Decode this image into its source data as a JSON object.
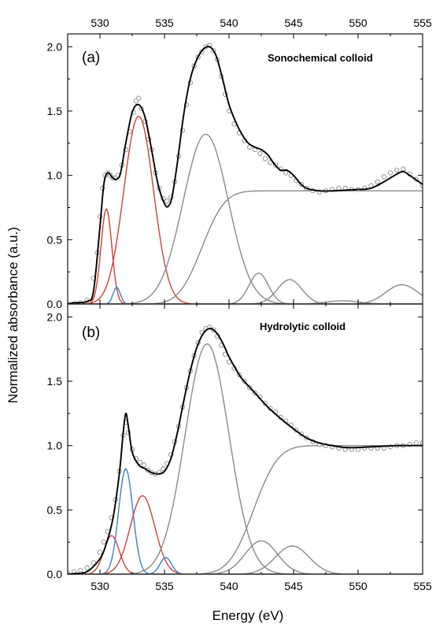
{
  "chart_data": [
    {
      "type": "line",
      "panel": "(a)",
      "annotation": "Sonochemical colloid",
      "xlabel": "Energy (eV)",
      "ylabel": "Normalized absorbance (a.u.)",
      "xlim": [
        527.5,
        555
      ],
      "ylim": [
        0,
        2.1
      ],
      "x_ticks": [
        530,
        535,
        540,
        545,
        550,
        555
      ],
      "x_tick_labels": [
        "530",
        "535",
        "540",
        "545",
        "550",
        "555"
      ],
      "y_ticks": [
        0.0,
        0.5,
        1.0,
        1.5,
        2.0
      ],
      "y_tick_labels": [
        "0.0",
        "0.5",
        "1.0",
        "1.5",
        "2.0"
      ],
      "grid": false,
      "colors": {
        "fit": "#000000",
        "gray": "#8a8a8a",
        "red": "#d0403a",
        "blue": "#3b82c4",
        "data": "#8c8c8c"
      },
      "components": [
        {
          "color": "red",
          "shape": "gauss",
          "center": 530.5,
          "amplitude": 0.74,
          "sigma": 0.42
        },
        {
          "color": "blue",
          "shape": "gauss",
          "center": 531.3,
          "amplitude": 0.13,
          "sigma": 0.28
        },
        {
          "color": "red",
          "shape": "gauss",
          "center": 533.0,
          "amplitude": 1.46,
          "sigma": 1.15
        },
        {
          "color": "gray",
          "shape": "gauss",
          "center": 538.2,
          "amplitude": 1.32,
          "sigma": 1.75
        },
        {
          "color": "gray",
          "shape": "step",
          "center": 537.9,
          "amplitude": 0.88,
          "width": 1.4
        },
        {
          "color": "gray",
          "shape": "gauss",
          "center": 542.3,
          "amplitude": 0.24,
          "sigma": 0.75
        },
        {
          "color": "gray",
          "shape": "gauss",
          "center": 544.7,
          "amplitude": 0.19,
          "sigma": 0.95
        },
        {
          "color": "gray",
          "shape": "gauss",
          "center": 548.8,
          "amplitude": 0.025,
          "sigma": 1.3
        },
        {
          "color": "gray",
          "shape": "gauss",
          "center": 553.4,
          "amplitude": 0.15,
          "sigma": 1.25
        }
      ],
      "fit_points": [
        [
          527.5,
          0.0
        ],
        [
          528.0,
          0.01
        ],
        [
          529.0,
          0.02
        ],
        [
          529.5,
          0.1
        ],
        [
          530.0,
          0.6
        ],
        [
          530.3,
          0.93
        ],
        [
          530.6,
          1.02
        ],
        [
          531.0,
          0.98
        ],
        [
          531.3,
          0.97
        ],
        [
          531.6,
          1.02
        ],
        [
          532.0,
          1.25
        ],
        [
          532.5,
          1.49
        ],
        [
          533.0,
          1.55
        ],
        [
          533.5,
          1.45
        ],
        [
          534.0,
          1.2
        ],
        [
          534.5,
          0.93
        ],
        [
          535.0,
          0.78
        ],
        [
          535.3,
          0.76
        ],
        [
          535.6,
          0.84
        ],
        [
          536.0,
          1.1
        ],
        [
          536.5,
          1.48
        ],
        [
          537.0,
          1.75
        ],
        [
          537.5,
          1.9
        ],
        [
          538.0,
          1.98
        ],
        [
          538.5,
          2.0
        ],
        [
          539.0,
          1.93
        ],
        [
          539.5,
          1.75
        ],
        [
          540.0,
          1.55
        ],
        [
          540.5,
          1.42
        ],
        [
          541.0,
          1.32
        ],
        [
          541.5,
          1.25
        ],
        [
          542.0,
          1.22
        ],
        [
          542.5,
          1.2
        ],
        [
          543.0,
          1.16
        ],
        [
          543.5,
          1.09
        ],
        [
          544.0,
          1.04
        ],
        [
          544.5,
          1.04
        ],
        [
          545.0,
          1.0
        ],
        [
          545.5,
          0.94
        ],
        [
          546.0,
          0.9
        ],
        [
          547.0,
          0.88
        ],
        [
          548.0,
          0.88
        ],
        [
          549.0,
          0.885
        ],
        [
          550.0,
          0.89
        ],
        [
          551.0,
          0.9
        ],
        [
          552.0,
          0.95
        ],
        [
          553.0,
          1.01
        ],
        [
          553.5,
          1.03
        ],
        [
          554.0,
          1.0
        ],
        [
          555.0,
          0.93
        ]
      ],
      "data_points": [
        [
          527.5,
          0.0
        ],
        [
          528.0,
          0.0
        ],
        [
          528.5,
          0.01
        ],
        [
          529.0,
          0.03
        ],
        [
          529.5,
          0.2
        ],
        [
          529.8,
          0.4
        ],
        [
          530.0,
          0.68
        ],
        [
          530.2,
          0.9
        ],
        [
          530.4,
          1.0
        ],
        [
          530.6,
          1.02
        ],
        [
          530.8,
          1.0
        ],
        [
          531.0,
          0.98
        ],
        [
          531.2,
          0.98
        ],
        [
          531.4,
          1.0
        ],
        [
          531.7,
          1.08
        ],
        [
          532.0,
          1.2
        ],
        [
          532.3,
          1.34
        ],
        [
          532.6,
          1.49
        ],
        [
          532.8,
          1.58
        ],
        [
          533.0,
          1.6
        ],
        [
          533.2,
          1.52
        ],
        [
          533.5,
          1.42
        ],
        [
          533.8,
          1.28
        ],
        [
          534.0,
          1.2
        ],
        [
          534.3,
          1.02
        ],
        [
          534.6,
          0.9
        ],
        [
          534.9,
          0.82
        ],
        [
          535.2,
          0.8
        ],
        [
          535.5,
          0.83
        ],
        [
          535.8,
          0.95
        ],
        [
          536.1,
          1.15
        ],
        [
          536.4,
          1.35
        ],
        [
          536.7,
          1.55
        ],
        [
          537.0,
          1.72
        ],
        [
          537.3,
          1.85
        ],
        [
          537.6,
          1.92
        ],
        [
          537.9,
          1.96
        ],
        [
          538.2,
          2.0
        ],
        [
          538.5,
          2.01
        ],
        [
          538.8,
          1.97
        ],
        [
          539.1,
          1.9
        ],
        [
          539.4,
          1.77
        ],
        [
          539.7,
          1.63
        ],
        [
          540.0,
          1.5
        ],
        [
          540.4,
          1.4
        ],
        [
          540.8,
          1.33
        ],
        [
          541.2,
          1.27
        ],
        [
          541.6,
          1.22
        ],
        [
          542.0,
          1.2
        ],
        [
          542.4,
          1.17
        ],
        [
          542.8,
          1.13
        ],
        [
          543.2,
          1.1
        ],
        [
          543.6,
          1.08
        ],
        [
          544.0,
          1.05
        ],
        [
          544.4,
          1.02
        ],
        [
          544.8,
          1.0
        ],
        [
          545.2,
          0.96
        ],
        [
          545.6,
          0.93
        ],
        [
          546.0,
          0.9
        ],
        [
          546.5,
          0.88
        ],
        [
          547.0,
          0.87
        ],
        [
          547.5,
          0.88
        ],
        [
          548.0,
          0.89
        ],
        [
          548.5,
          0.9
        ],
        [
          549.0,
          0.9
        ],
        [
          549.5,
          0.89
        ],
        [
          550.0,
          0.89
        ],
        [
          550.5,
          0.9
        ],
        [
          551.0,
          0.92
        ],
        [
          551.5,
          0.95
        ],
        [
          552.0,
          0.99
        ],
        [
          552.5,
          1.02
        ],
        [
          553.0,
          1.04
        ],
        [
          553.5,
          1.05
        ],
        [
          554.0,
          1.01
        ],
        [
          554.5,
          0.97
        ],
        [
          555.0,
          0.92
        ]
      ]
    },
    {
      "type": "line",
      "panel": "(b)",
      "annotation": "Hydrolytic colloid",
      "xlabel": "Energy (eV)",
      "ylabel": "Normalized absorbance (a.u.)",
      "xlim": [
        527.5,
        555
      ],
      "ylim": [
        0,
        2.1
      ],
      "x_ticks": [
        530,
        535,
        540,
        545,
        550,
        555
      ],
      "x_tick_labels": [
        "530",
        "535",
        "540",
        "545",
        "550",
        "555"
      ],
      "y_ticks": [
        0.0,
        0.5,
        1.0,
        1.5,
        2.0
      ],
      "y_tick_labels": [
        "0.0",
        "0.5",
        "1.0",
        "1.5",
        "2.0"
      ],
      "grid": false,
      "colors": {
        "fit": "#000000",
        "gray": "#8a8a8a",
        "red": "#d0403a",
        "blue": "#3b82c4",
        "data": "#8c8c8c"
      },
      "components": [
        {
          "color": "red",
          "shape": "gauss",
          "center": 530.9,
          "amplitude": 0.3,
          "sigma": 0.6
        },
        {
          "color": "blue",
          "shape": "gauss",
          "center": 532.0,
          "amplitude": 0.82,
          "sigma": 0.55
        },
        {
          "color": "red",
          "shape": "gauss",
          "center": 533.3,
          "amplitude": 0.61,
          "sigma": 0.95
        },
        {
          "color": "blue",
          "shape": "gauss",
          "center": 535.1,
          "amplitude": 0.13,
          "sigma": 0.45
        },
        {
          "color": "gray",
          "shape": "gauss",
          "center": 538.3,
          "amplitude": 1.79,
          "sigma": 1.7
        },
        {
          "color": "gray",
          "shape": "step",
          "center": 541.9,
          "amplitude": 1.0,
          "width": 1.5
        },
        {
          "color": "gray",
          "shape": "gauss",
          "center": 542.5,
          "amplitude": 0.26,
          "sigma": 1.25
        },
        {
          "color": "gray",
          "shape": "gauss",
          "center": 544.9,
          "amplitude": 0.22,
          "sigma": 1.3
        }
      ],
      "fit_points": [
        [
          527.5,
          0.0
        ],
        [
          528.0,
          0.005
        ],
        [
          529.0,
          0.02
        ],
        [
          530.0,
          0.12
        ],
        [
          530.5,
          0.24
        ],
        [
          531.0,
          0.43
        ],
        [
          531.5,
          0.78
        ],
        [
          531.8,
          1.1
        ],
        [
          532.0,
          1.25
        ],
        [
          532.2,
          1.15
        ],
        [
          532.5,
          0.95
        ],
        [
          533.0,
          0.85
        ],
        [
          533.5,
          0.82
        ],
        [
          534.0,
          0.79
        ],
        [
          534.5,
          0.78
        ],
        [
          535.0,
          0.8
        ],
        [
          535.5,
          0.9
        ],
        [
          536.0,
          1.1
        ],
        [
          536.5,
          1.35
        ],
        [
          537.0,
          1.58
        ],
        [
          537.5,
          1.76
        ],
        [
          538.0,
          1.87
        ],
        [
          538.5,
          1.91
        ],
        [
          539.0,
          1.88
        ],
        [
          539.5,
          1.8
        ],
        [
          540.0,
          1.69
        ],
        [
          540.5,
          1.6
        ],
        [
          541.0,
          1.52
        ],
        [
          542.0,
          1.41
        ],
        [
          543.0,
          1.3
        ],
        [
          544.0,
          1.21
        ],
        [
          545.0,
          1.13
        ],
        [
          546.0,
          1.06
        ],
        [
          547.0,
          1.02
        ],
        [
          548.0,
          1.0
        ],
        [
          549.0,
          0.985
        ],
        [
          550.0,
          0.985
        ],
        [
          551.0,
          0.99
        ],
        [
          552.0,
          0.995
        ],
        [
          553.0,
          1.0
        ],
        [
          554.0,
          1.0
        ],
        [
          555.0,
          1.0
        ]
      ],
      "data_points": [
        [
          527.5,
          0.01
        ],
        [
          528.0,
          0.02
        ],
        [
          528.5,
          0.03
        ],
        [
          529.0,
          0.05
        ],
        [
          529.5,
          0.09
        ],
        [
          530.0,
          0.17
        ],
        [
          530.3,
          0.25
        ],
        [
          530.6,
          0.33
        ],
        [
          530.9,
          0.44
        ],
        [
          531.2,
          0.58
        ],
        [
          531.5,
          0.8
        ],
        [
          531.8,
          1.08
        ],
        [
          532.0,
          1.18
        ],
        [
          532.2,
          1.1
        ],
        [
          532.5,
          0.97
        ],
        [
          532.8,
          0.9
        ],
        [
          533.1,
          0.87
        ],
        [
          533.4,
          0.85
        ],
        [
          533.7,
          0.81
        ],
        [
          534.0,
          0.79
        ],
        [
          534.3,
          0.78
        ],
        [
          534.6,
          0.79
        ],
        [
          534.9,
          0.82
        ],
        [
          535.2,
          0.86
        ],
        [
          535.5,
          0.93
        ],
        [
          535.8,
          1.03
        ],
        [
          536.1,
          1.15
        ],
        [
          536.4,
          1.3
        ],
        [
          536.7,
          1.45
        ],
        [
          537.0,
          1.58
        ],
        [
          537.3,
          1.7
        ],
        [
          537.6,
          1.8
        ],
        [
          537.9,
          1.88
        ],
        [
          538.2,
          1.91
        ],
        [
          538.5,
          1.92
        ],
        [
          538.8,
          1.9
        ],
        [
          539.1,
          1.85
        ],
        [
          539.4,
          1.78
        ],
        [
          539.7,
          1.71
        ],
        [
          540.0,
          1.65
        ],
        [
          540.4,
          1.6
        ],
        [
          540.8,
          1.55
        ],
        [
          541.2,
          1.5
        ],
        [
          541.6,
          1.45
        ],
        [
          542.0,
          1.41
        ],
        [
          542.4,
          1.38
        ],
        [
          542.8,
          1.33
        ],
        [
          543.2,
          1.29
        ],
        [
          543.6,
          1.26
        ],
        [
          544.0,
          1.22
        ],
        [
          544.4,
          1.19
        ],
        [
          544.8,
          1.16
        ],
        [
          545.2,
          1.12
        ],
        [
          545.6,
          1.09
        ],
        [
          546.0,
          1.06
        ],
        [
          546.5,
          1.03
        ],
        [
          547.0,
          1.01
        ],
        [
          547.5,
          1.0
        ],
        [
          548.0,
          0.99
        ],
        [
          548.5,
          0.98
        ],
        [
          549.0,
          0.97
        ],
        [
          549.5,
          0.97
        ],
        [
          550.0,
          0.97
        ],
        [
          550.5,
          0.98
        ],
        [
          551.0,
          0.98
        ],
        [
          551.5,
          0.98
        ],
        [
          552.0,
          0.98
        ],
        [
          552.5,
          0.99
        ],
        [
          553.0,
          1.0
        ],
        [
          553.5,
          1.0
        ],
        [
          554.0,
          1.01
        ],
        [
          554.5,
          1.02
        ],
        [
          555.0,
          1.02
        ]
      ]
    }
  ]
}
